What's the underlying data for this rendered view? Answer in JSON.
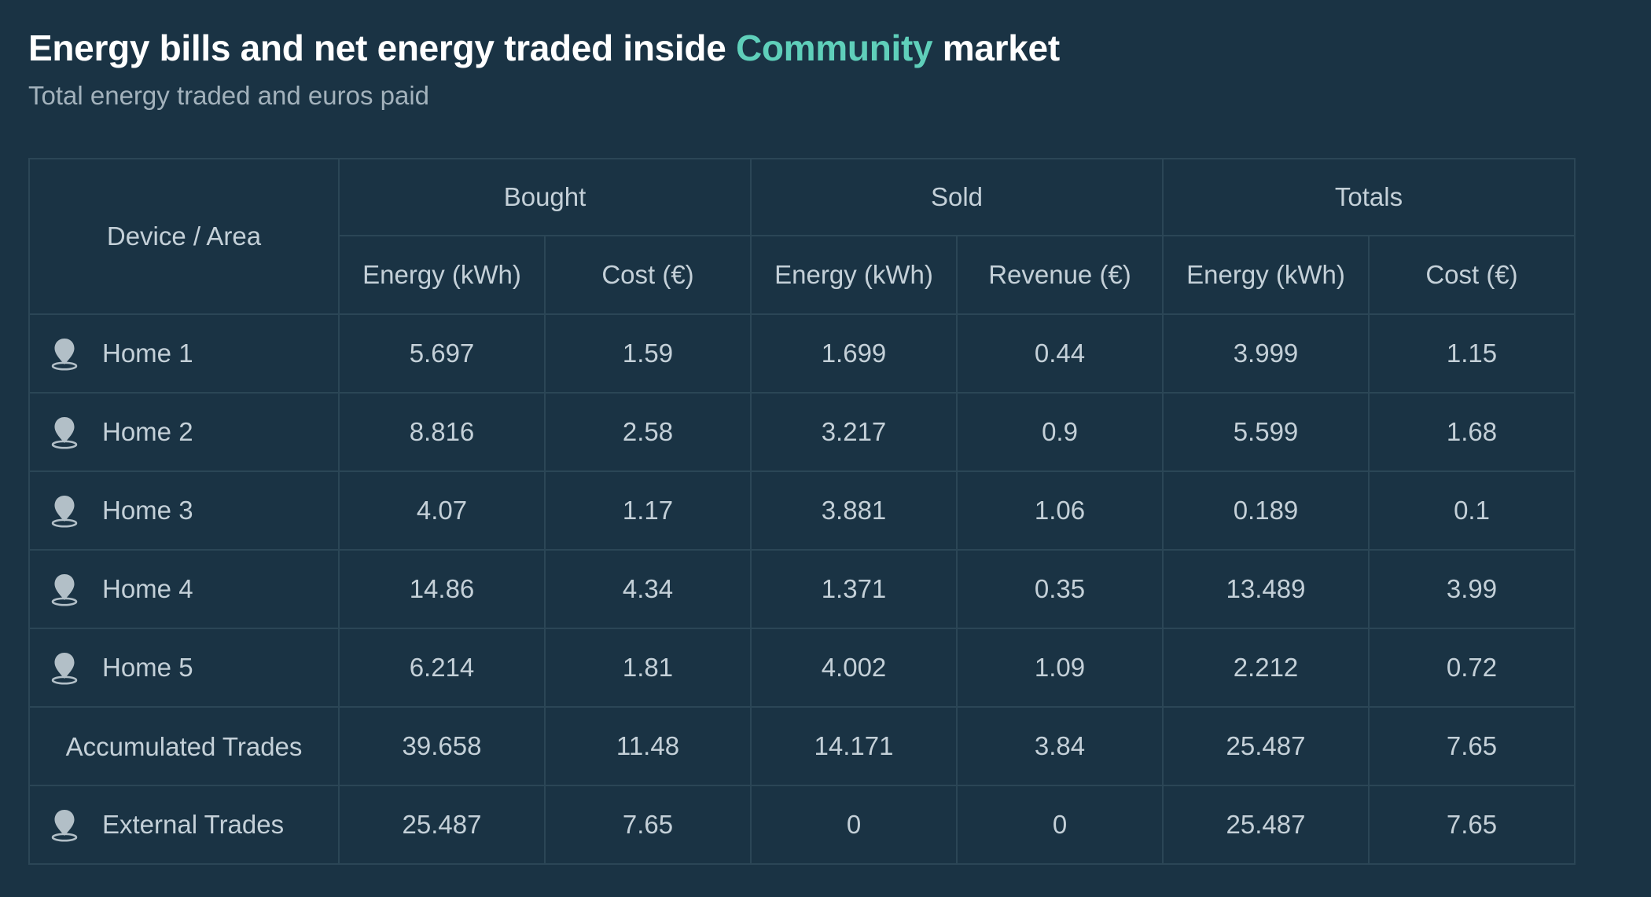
{
  "header": {
    "title_prefix": "Energy bills and net energy traded inside ",
    "title_accent": "Community",
    "title_suffix": " market",
    "subtitle": "Total energy traded and euros paid"
  },
  "colors": {
    "background": "#1a3344",
    "accent": "#5fcfba",
    "border": "#2b4656",
    "text": "#c4d0d8"
  },
  "table": {
    "first_col_header": "Device / Area",
    "groups": [
      "Bought",
      "Sold",
      "Totals"
    ],
    "sub_headers": [
      "Energy (kWh)",
      "Cost (€)",
      "Energy (kWh)",
      "Revenue (€)",
      "Energy (kWh)",
      "Cost (€)"
    ],
    "rows": [
      {
        "label": "Home 1",
        "icon": "house-marker-icon",
        "values": [
          "5.697",
          "1.59",
          "1.699",
          "0.44",
          "3.999",
          "1.15"
        ]
      },
      {
        "label": "Home 2",
        "icon": "house-marker-icon",
        "values": [
          "8.816",
          "2.58",
          "3.217",
          "0.9",
          "5.599",
          "1.68"
        ]
      },
      {
        "label": "Home 3",
        "icon": "house-marker-icon",
        "values": [
          "4.07",
          "1.17",
          "3.881",
          "1.06",
          "0.189",
          "0.1"
        ]
      },
      {
        "label": "Home 4",
        "icon": "house-marker-icon",
        "values": [
          "14.86",
          "4.34",
          "1.371",
          "0.35",
          "13.489",
          "3.99"
        ]
      },
      {
        "label": "Home 5",
        "icon": "house-marker-icon",
        "values": [
          "6.214",
          "1.81",
          "4.002",
          "1.09",
          "2.212",
          "0.72"
        ]
      },
      {
        "label": "Accumulated Trades",
        "icon": null,
        "values": [
          "39.658",
          "11.48",
          "14.171",
          "3.84",
          "25.487",
          "7.65"
        ]
      },
      {
        "label": "External Trades",
        "icon": "house-marker-icon",
        "values": [
          "25.487",
          "7.65",
          "0",
          "0",
          "25.487",
          "7.65"
        ]
      }
    ]
  }
}
